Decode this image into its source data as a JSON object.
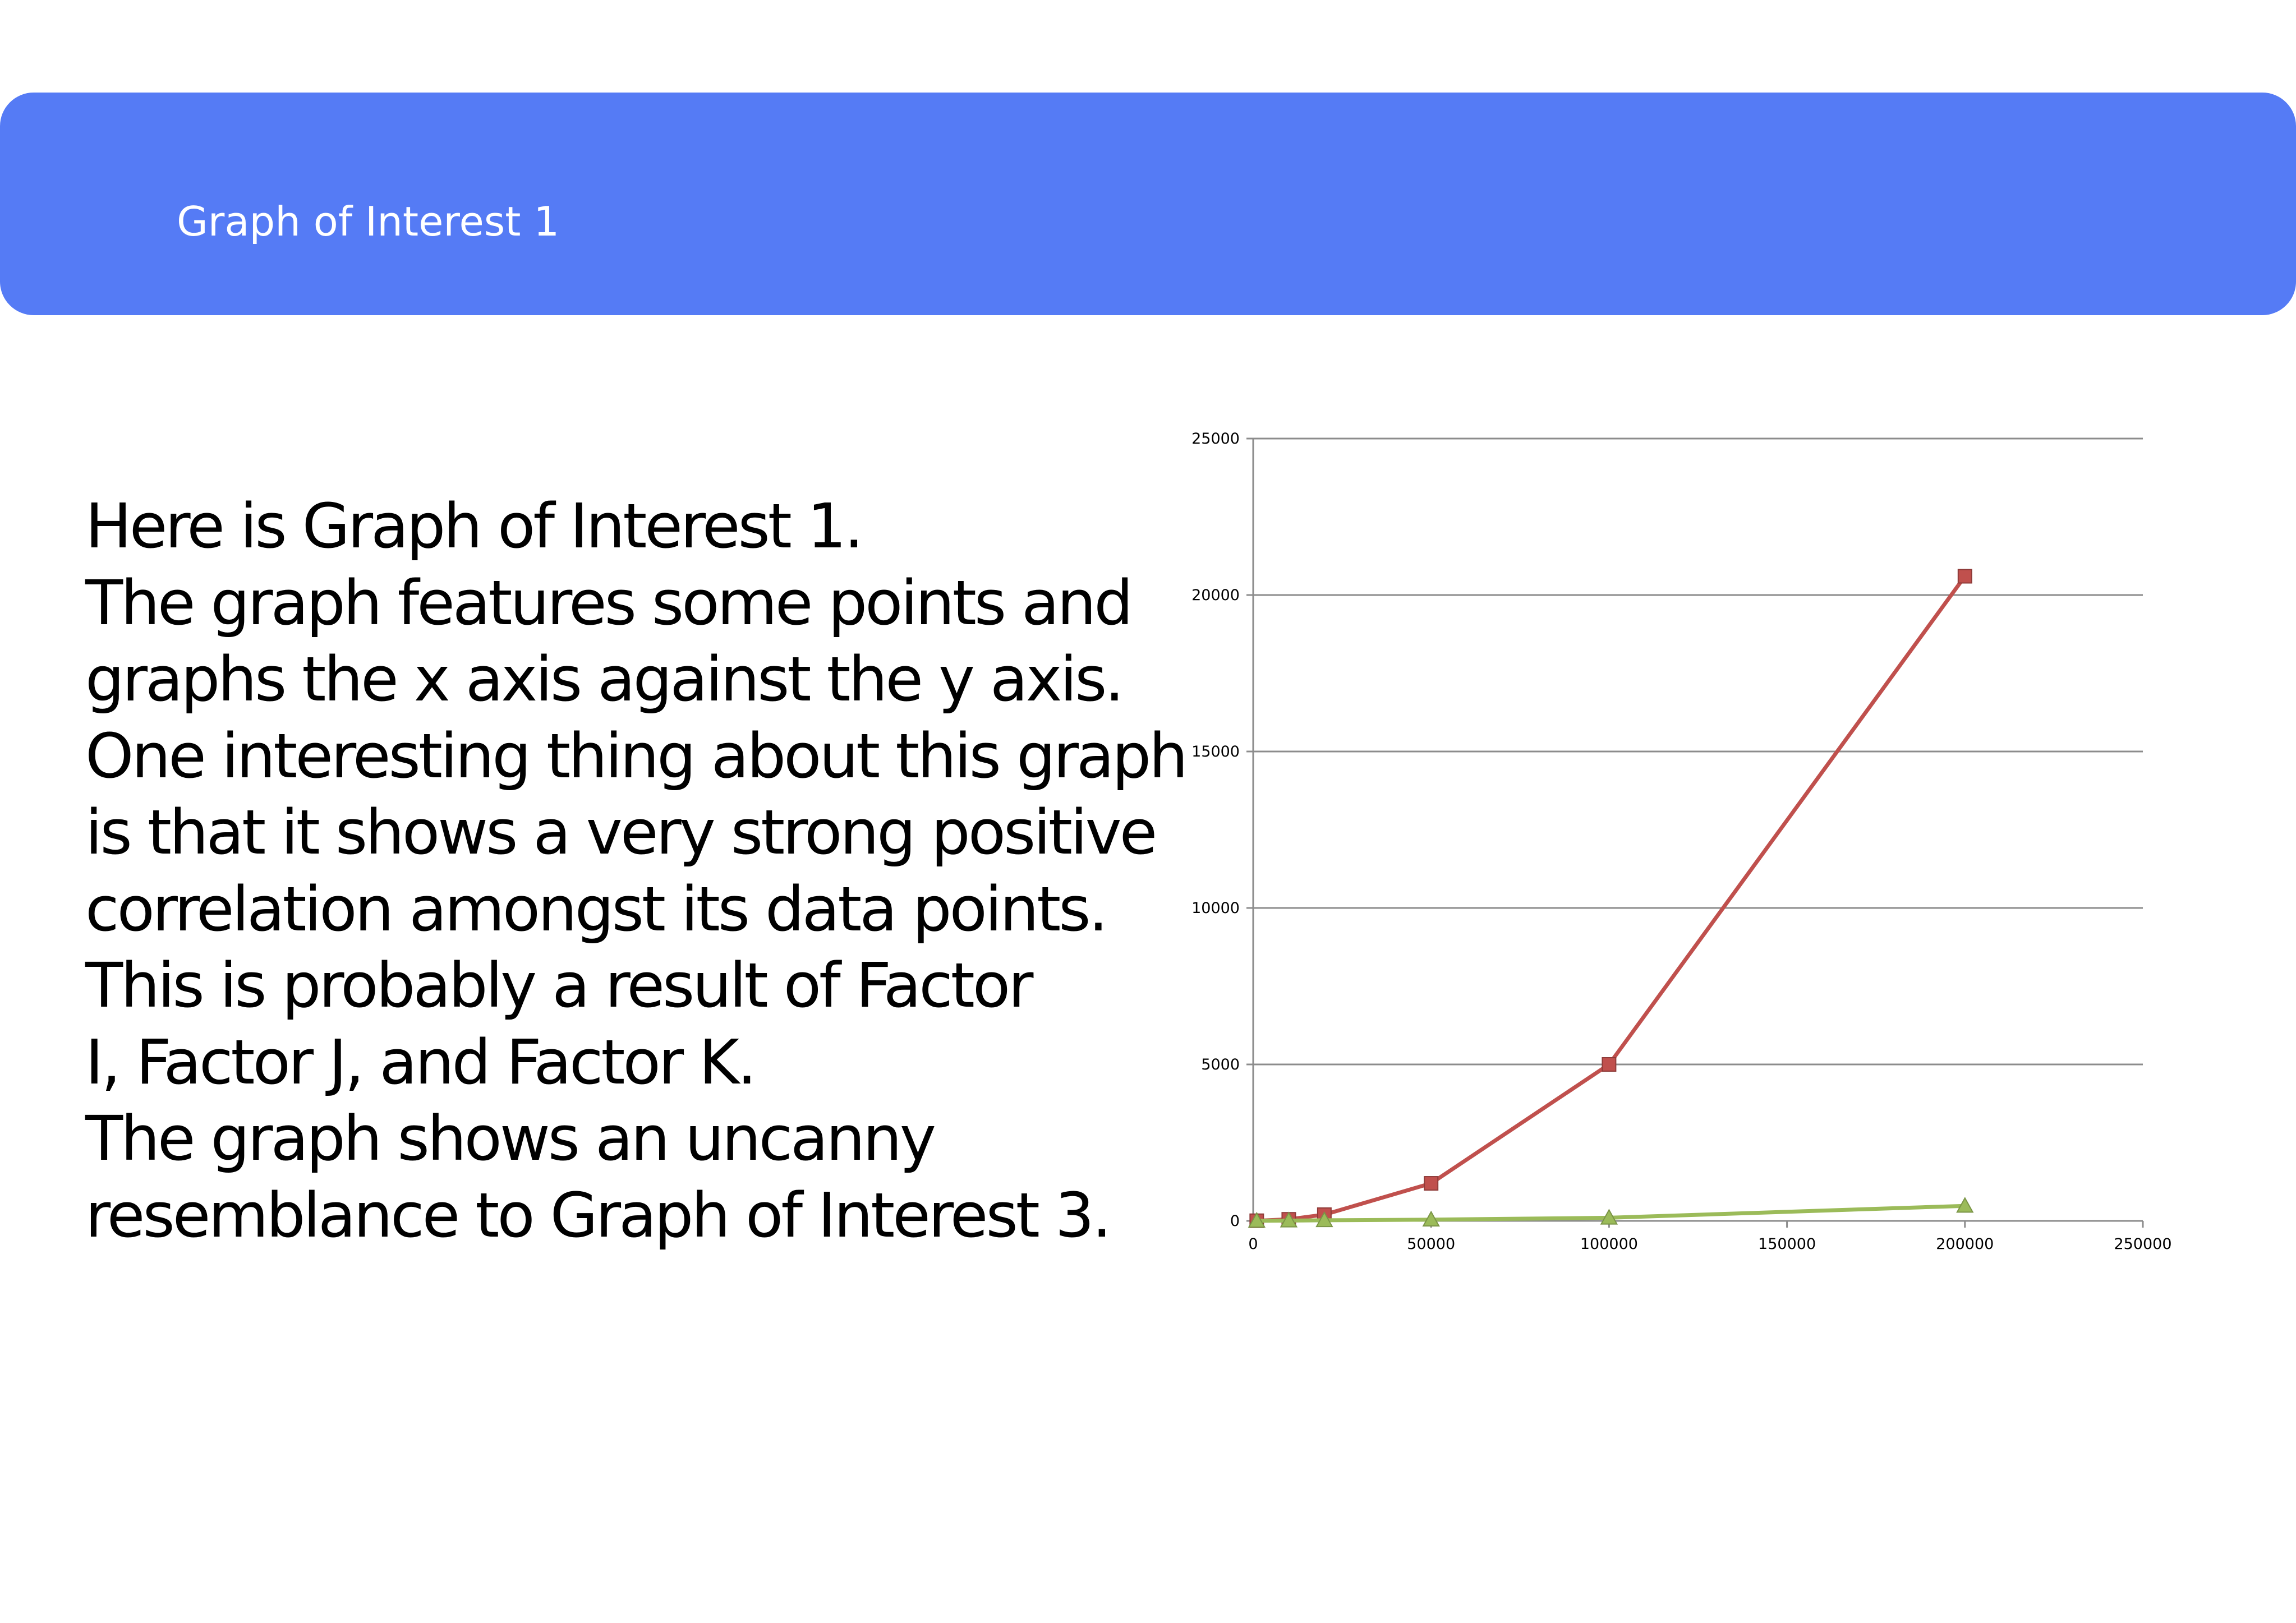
{
  "header": {
    "title": "Graph of Interest 1"
  },
  "body": {
    "lines": [
      "Here is Graph of Interest 1.",
      "The graph features some points and",
      "graphs the x axis against the y axis.",
      "One interesting thing about this graph",
      "is that it shows a very strong positive",
      "correlation amongst its data points.",
      "This is probably a result of Factor",
      "I, Factor J, and Factor K.",
      "The graph shows an uncanny",
      "resemblance to Graph of Interest 3."
    ]
  },
  "colors": {
    "header_bg": "#557bf5",
    "series_red": "#c0504d",
    "series_green": "#9bbb59",
    "gridline": "#8c8c8c"
  },
  "chart_data": {
    "type": "line",
    "title": "",
    "xlabel": "",
    "ylabel": "",
    "xlim": [
      0,
      250000
    ],
    "ylim": [
      0,
      25000
    ],
    "x_ticks": [
      0,
      50000,
      100000,
      150000,
      200000,
      250000
    ],
    "y_ticks": [
      0,
      5000,
      10000,
      15000,
      20000,
      25000
    ],
    "x_tick_labels": [
      "0",
      "50000",
      "100000",
      "150000",
      "200000",
      "250000"
    ],
    "y_tick_labels": [
      "0",
      "5000",
      "10000",
      "15000",
      "20000",
      "25000"
    ],
    "grid": "horizontal",
    "legend": "none",
    "series": [
      {
        "color": "#c0504d",
        "marker": "square",
        "points": [
          [
            1000,
            5
          ],
          [
            10000,
            50
          ],
          [
            20000,
            200
          ],
          [
            50000,
            1200
          ],
          [
            100000,
            5000
          ],
          [
            200000,
            20600
          ]
        ]
      },
      {
        "color": "#9bbb59",
        "marker": "triangle",
        "points": [
          [
            1000,
            2
          ],
          [
            10000,
            10
          ],
          [
            20000,
            20
          ],
          [
            50000,
            40
          ],
          [
            100000,
            100
          ],
          [
            200000,
            480
          ]
        ]
      }
    ]
  }
}
